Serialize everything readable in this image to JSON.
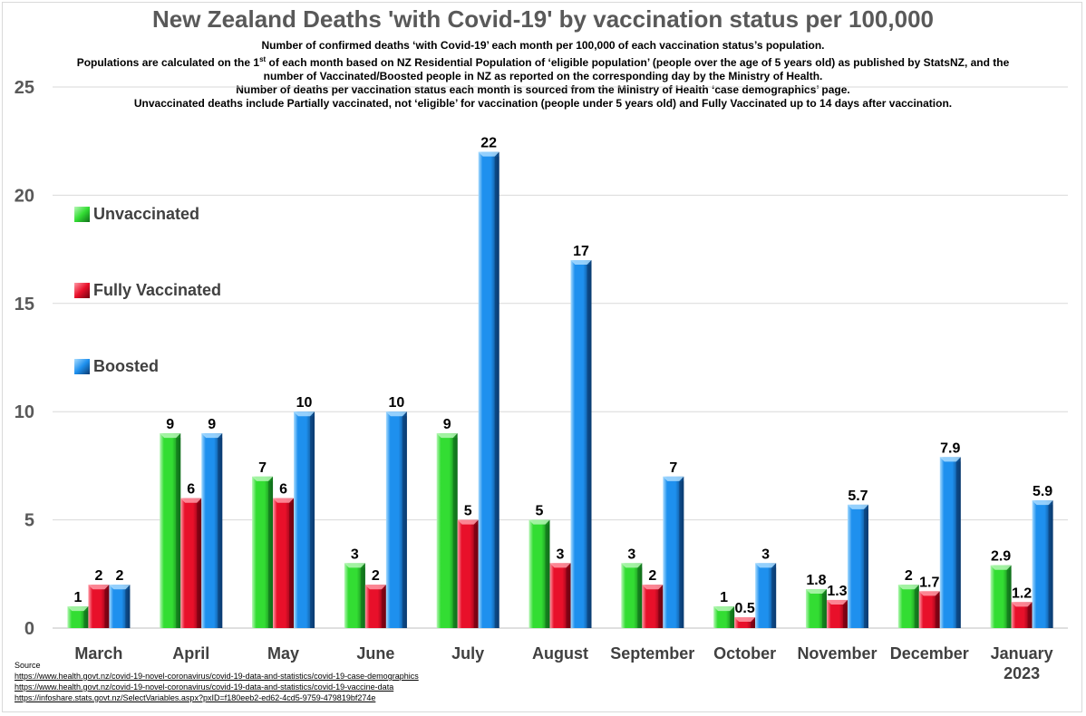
{
  "title": "New Zealand Deaths 'with Covid-19' by vaccination status per 100,000",
  "subtitle_lines": [
    "Number of confirmed deaths ‘with Covid-19’ each month per 100,000 of each vaccination status’s population.",
    "Populations are calculated on the 1st of each month based on NZ Residential Population of ‘eligible population’ (people over the age of 5 years old) as published by StatsNZ, and the",
    "number of Vaccinated/Boosted people in NZ as reported on the corresponding day by the Ministry of Health.",
    "Number of deaths per vaccination status each month is sourced from the Ministry of Health ‘case demographics’ page.",
    "Unvaccinated deaths include Partially vaccinated, not ‘eligible’ for vaccination (people under 5 years old) and Fully Vaccinated up to 14 days after vaccination."
  ],
  "source": {
    "label": "Source",
    "links": [
      "https://www.health.govt.nz/covid-19-novel-coronavirus/covid-19-data-and-statistics/covid-19-case-demographics",
      "https://www.health.govt.nz/covid-19-novel-coronavirus/covid-19-data-and-statistics/covid-19-vaccine-data",
      "https://infoshare.stats.govt.nz/SelectVariables.aspx?pxID=f180eeb2-ed62-4cd5-9759-479819bf274e"
    ]
  },
  "colors": {
    "unvaccinated": "#33dd33",
    "fully_vaccinated": "#e8102a",
    "boosted": "#1e90ee"
  },
  "chart_data": {
    "type": "bar",
    "categories": [
      "March",
      "April",
      "May",
      "June",
      "July",
      "August",
      "September",
      "October",
      "November",
      "December",
      "January 2023"
    ],
    "series": [
      {
        "name": "Unvaccinated",
        "values": [
          1,
          9,
          7,
          3,
          9,
          5,
          3,
          1,
          1.8,
          2,
          2.9
        ],
        "labels": [
          "1",
          "9",
          "7",
          "3",
          "9",
          "5",
          "3",
          "1",
          "1.8",
          "2",
          "2.9"
        ]
      },
      {
        "name": "Fully Vaccinated",
        "values": [
          2,
          6,
          6,
          2,
          5,
          3,
          2,
          0.5,
          1.3,
          1.7,
          1.2
        ],
        "labels": [
          "2",
          "6",
          "6",
          "2",
          "5",
          "3",
          "2",
          "0.5",
          "1.3",
          "1.7",
          "1.2"
        ]
      },
      {
        "name": "Boosted",
        "values": [
          2,
          9,
          10,
          10,
          22,
          17,
          7,
          3,
          5.7,
          7.9,
          5.9
        ],
        "labels": [
          "2",
          "9",
          "10",
          "10",
          "22",
          "17",
          "7",
          "3",
          "5.7",
          "7.9",
          "5.9"
        ]
      }
    ],
    "ylim": [
      0,
      25
    ],
    "yticks": [
      0,
      5,
      10,
      15,
      20,
      25
    ],
    "grid": true,
    "legend_position": "left"
  }
}
